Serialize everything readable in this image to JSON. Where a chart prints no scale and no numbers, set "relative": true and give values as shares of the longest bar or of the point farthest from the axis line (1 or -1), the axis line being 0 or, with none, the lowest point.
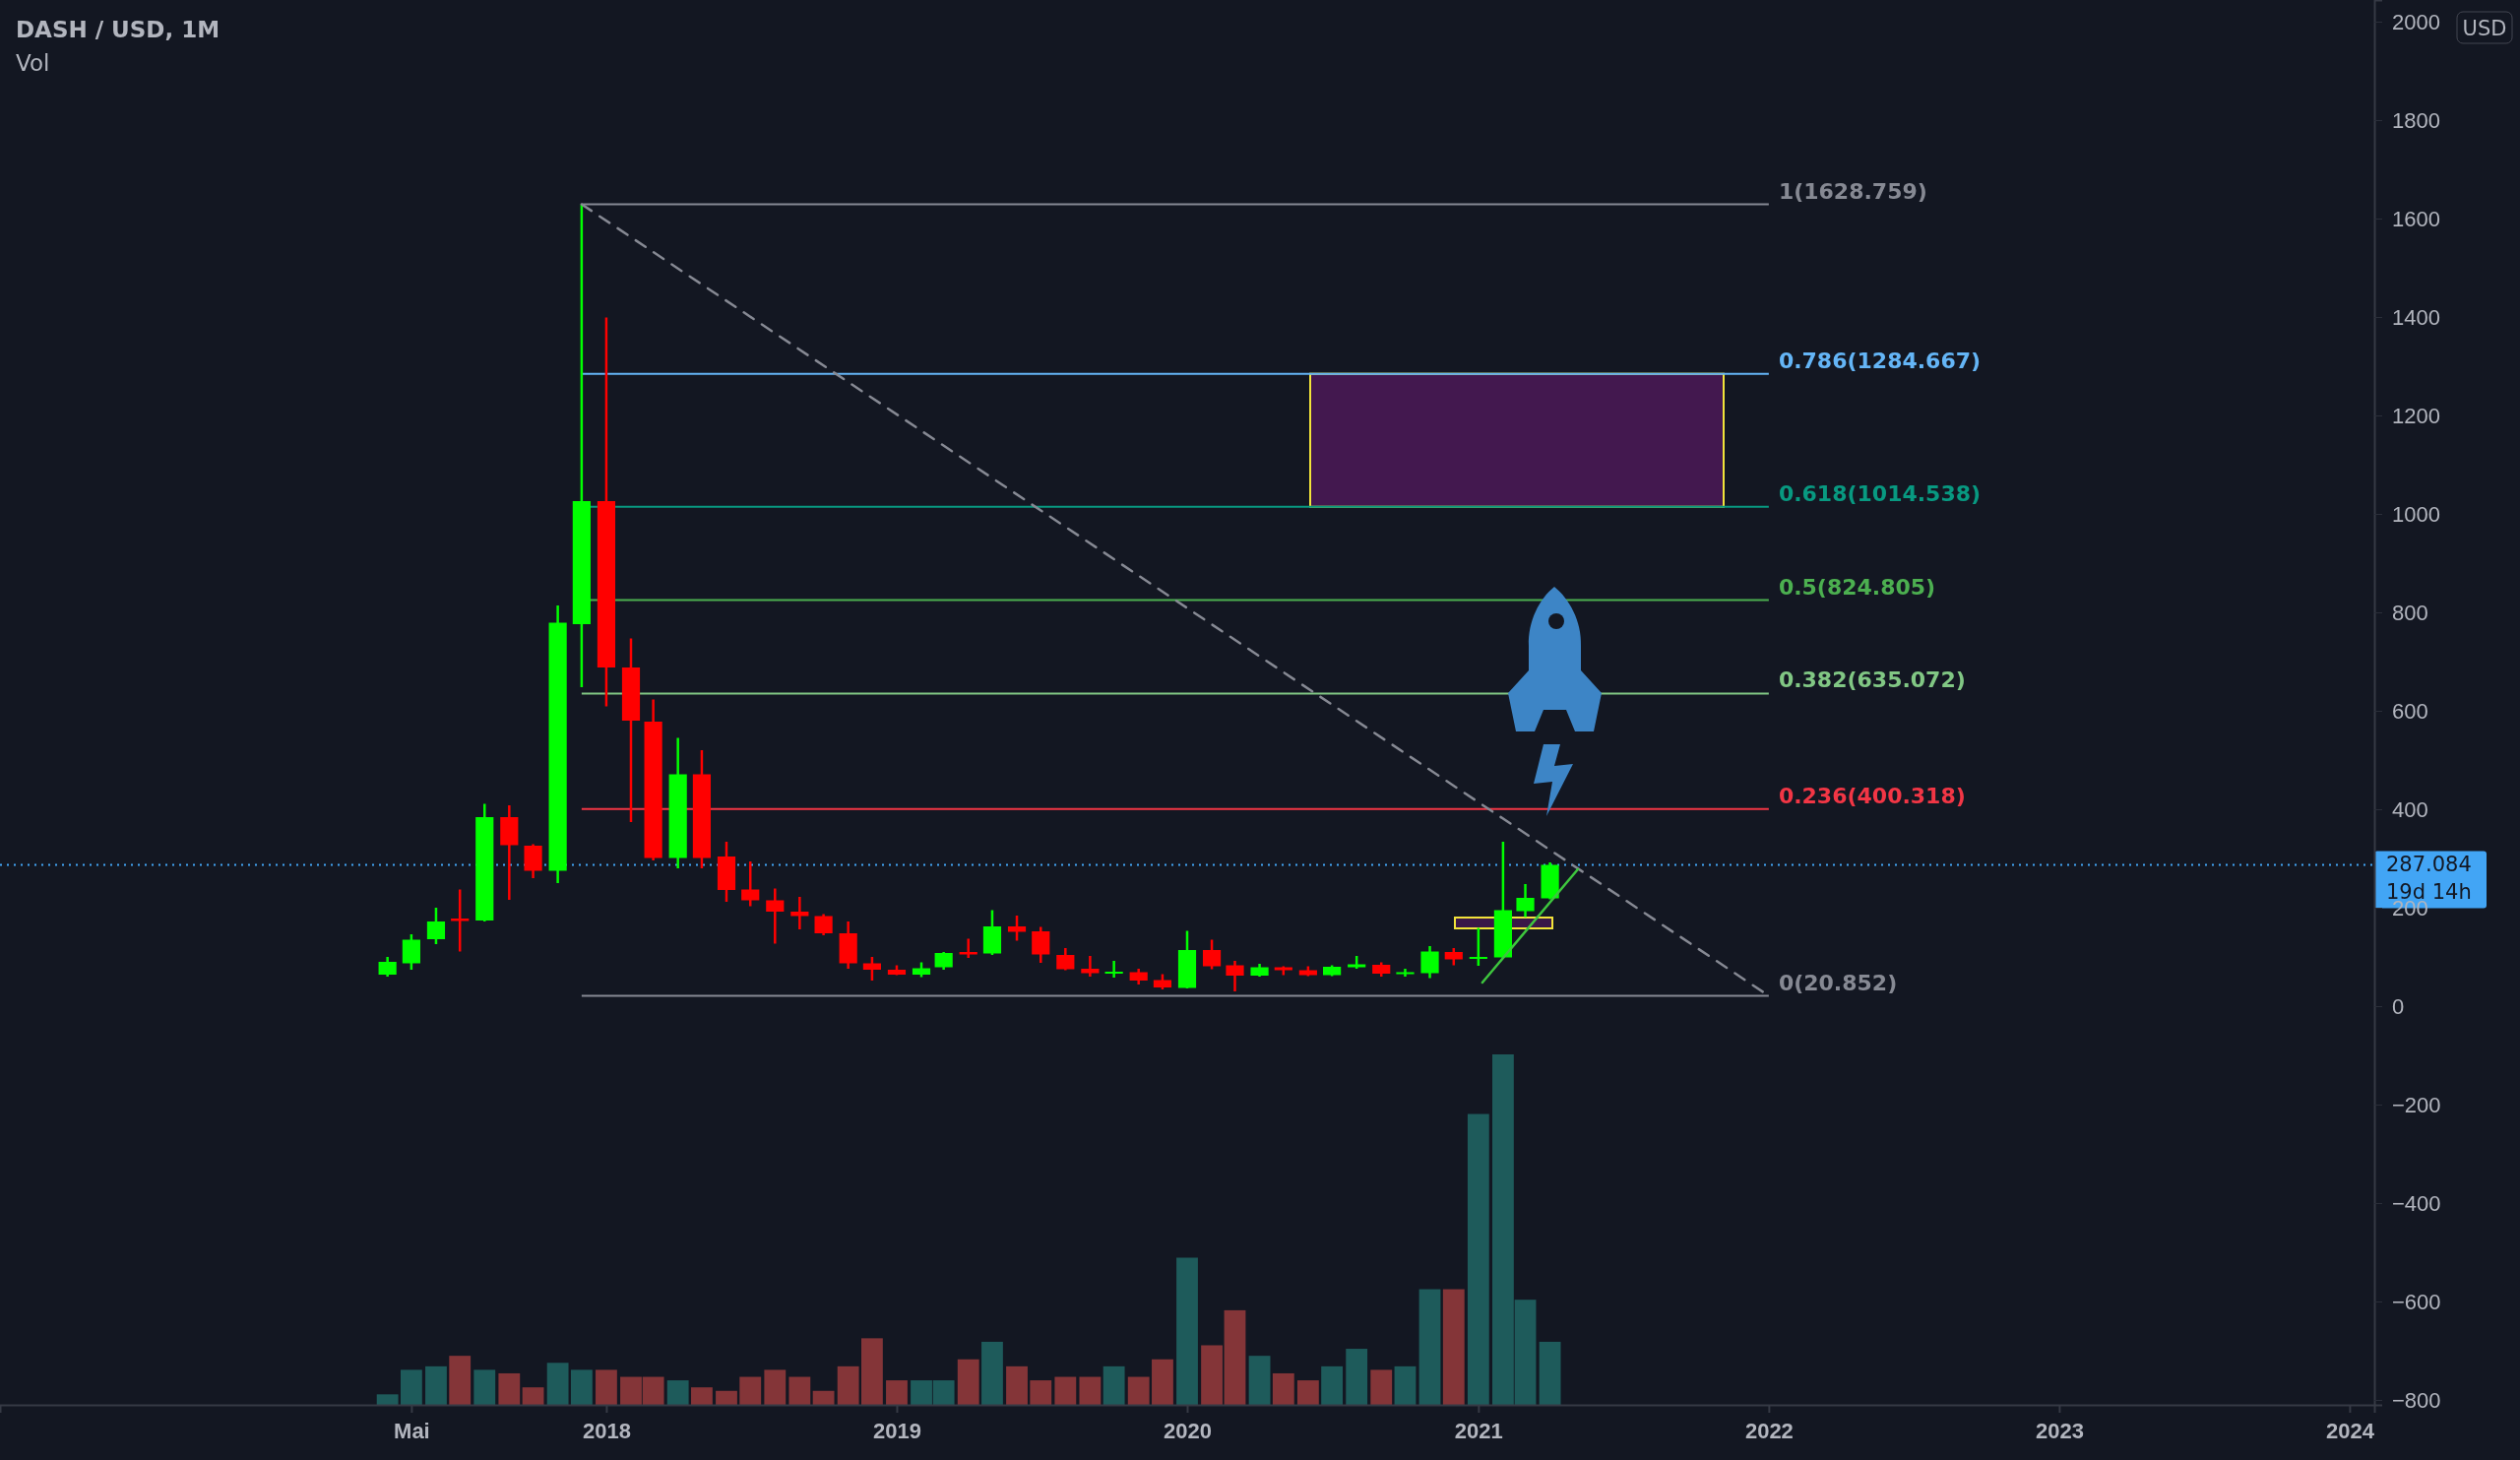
{
  "chart_data": [
    {
      "type": "candlestick",
      "title": "DASH / USD, 1M",
      "x": [
        "2017-04",
        "2017-05",
        "2017-06",
        "2017-07",
        "2017-08",
        "2017-09",
        "2017-10",
        "2017-11",
        "2017-12",
        "2018-01",
        "2018-02",
        "2018-03",
        "2018-04",
        "2018-05",
        "2018-06",
        "2018-07",
        "2018-08",
        "2018-09",
        "2018-10",
        "2018-11",
        "2018-12",
        "2019-01",
        "2019-02",
        "2019-03",
        "2019-04",
        "2019-05",
        "2019-06",
        "2019-07",
        "2019-08",
        "2019-09",
        "2019-10",
        "2019-11",
        "2019-12",
        "2020-01",
        "2020-02",
        "2020-03",
        "2020-04",
        "2020-05",
        "2020-06",
        "2020-07",
        "2020-08",
        "2020-09",
        "2020-10",
        "2020-11",
        "2020-12",
        "2021-01",
        "2021-02",
        "2021-03",
        "2021-04"
      ],
      "ohlc": [
        [
          64,
          100,
          60,
          90
        ],
        [
          87,
          146,
          74,
          135
        ],
        [
          136,
          200,
          126,
          172
        ],
        [
          178,
          237,
          111,
          173
        ],
        [
          174,
          411,
          172,
          384
        ],
        [
          384,
          408,
          216,
          327
        ],
        [
          326,
          329,
          260,
          275
        ],
        [
          275,
          814,
          250,
          779
        ],
        [
          776,
          1628.759,
          648,
          1026
        ],
        [
          1026,
          1399,
          609,
          688
        ],
        [
          688,
          747,
          374,
          580
        ],
        [
          578,
          623,
          296,
          301
        ],
        [
          301,
          545,
          280,
          471
        ],
        [
          471,
          520,
          280,
          301
        ],
        [
          304,
          334,
          212,
          236
        ],
        [
          237,
          294,
          203,
          215
        ],
        [
          215,
          239,
          127,
          192
        ],
        [
          192,
          222,
          156,
          183
        ],
        [
          183,
          187,
          144,
          148
        ],
        [
          148,
          172,
          76,
          87
        ],
        [
          87,
          100,
          52,
          74
        ],
        [
          74,
          83,
          63,
          64
        ],
        [
          64,
          89,
          59,
          77
        ],
        [
          79,
          110,
          74,
          108
        ],
        [
          110,
          137,
          98,
          105
        ],
        [
          107,
          195,
          104,
          162
        ],
        [
          162,
          184,
          133,
          151
        ],
        [
          152,
          161,
          88,
          105
        ],
        [
          104,
          118,
          73,
          75
        ],
        [
          76,
          102,
          60,
          67
        ],
        [
          67,
          92,
          58,
          70
        ],
        [
          69,
          76,
          44,
          52
        ],
        [
          53,
          65,
          34,
          38
        ],
        [
          37,
          153,
          36,
          114
        ],
        [
          114,
          135,
          75,
          81
        ],
        [
          83,
          92,
          30,
          62
        ],
        [
          62,
          86,
          60,
          79
        ],
        [
          79,
          81,
          63,
          73
        ],
        [
          73,
          81,
          61,
          63
        ],
        [
          63,
          83,
          61,
          80
        ],
        [
          79,
          102,
          76,
          85
        ],
        [
          84,
          89,
          60,
          66
        ],
        [
          65,
          76,
          60,
          69
        ],
        [
          67,
          122,
          57,
          111
        ],
        [
          110,
          118,
          83,
          95
        ],
        [
          97,
          159,
          82,
          100
        ],
        [
          99,
          334,
          98,
          195
        ],
        [
          193,
          248,
          181,
          220
        ],
        [
          219,
          292,
          217,
          287.084
        ]
      ],
      "colors": [
        "#00ff00",
        "#00ff00",
        "#00ff00",
        "#ff0000",
        "#00ff00",
        "#ff0000",
        "#ff0000",
        "#00ff00",
        "#00ff00",
        "#ff0000",
        "#ff0000",
        "#ff0000",
        "#00ff00",
        "#ff0000",
        "#ff0000",
        "#ff0000",
        "#ff0000",
        "#ff0000",
        "#ff0000",
        "#ff0000",
        "#ff0000",
        "#ff0000",
        "#00ff00",
        "#00ff00",
        "#ff0000",
        "#00ff00",
        "#ff0000",
        "#ff0000",
        "#ff0000",
        "#ff0000",
        "#00ff00",
        "#ff0000",
        "#ff0000",
        "#00ff00",
        "#ff0000",
        "#ff0000",
        "#00ff00",
        "#ff0000",
        "#ff0000",
        "#00ff00",
        "#00ff00",
        "#ff0000",
        "#00ff00",
        "#00ff00",
        "#ff0000",
        "#00ff00",
        "#00ff00",
        "#00ff00",
        "#00ff00"
      ],
      "series": [
        {
          "type": "line",
          "x": [
            "2017-12",
            "2022-01"
          ],
          "values": [
            1629,
            21
          ],
          "color": "#868993",
          "line_style": "dashed"
        },
        {
          "type": "line",
          "x": [
            "2021-01-06",
            "2021-05-06"
          ],
          "values": [
            48,
            278
          ],
          "color": "#3ec63e",
          "line_style": "solid"
        }
      ],
      "xlim": [
        "2015-12",
        "2024-02"
      ],
      "xticks": [
        {
          "value": "2017-05",
          "label": "Mai"
        },
        {
          "value": "2018",
          "label": "2018"
        },
        {
          "value": "2019",
          "label": "2019"
        },
        {
          "value": "2020",
          "label": "2020"
        },
        {
          "value": "2021",
          "label": "2021"
        },
        {
          "value": "2022",
          "label": "2022"
        },
        {
          "value": "2023",
          "label": "2023"
        },
        {
          "value": "2024",
          "label": "2024"
        }
      ],
      "ylim": [
        -810,
        2044
      ],
      "yticks": [
        -800,
        -600,
        -400,
        -200,
        0,
        200,
        400,
        600,
        800,
        1000,
        1200,
        1400,
        1600,
        1800,
        2000
      ],
      "ref_lines": [
        {
          "axis": "y",
          "value": 1628.759,
          "label": "1(1628.759)",
          "color": "#868993"
        },
        {
          "axis": "y",
          "value": 1284.667,
          "label": "0.786(1284.667)",
          "color": "#64b5f6"
        },
        {
          "axis": "y",
          "value": 1014.538,
          "label": "0.618(1014.538)",
          "color": "#089981"
        },
        {
          "axis": "y",
          "value": 824.805,
          "label": "0.5(824.805)",
          "color": "#4caf50"
        },
        {
          "axis": "y",
          "value": 635.072,
          "label": "0.382(635.072)",
          "color": "#81c784"
        },
        {
          "axis": "y",
          "value": 400.318,
          "label": "0.236(400.318)",
          "color": "#f23645"
        },
        {
          "axis": "y",
          "value": 20.852,
          "label": "0(20.852)",
          "color": "#868993"
        },
        {
          "axis": "y",
          "value": 287.084,
          "label": "287.084",
          "color": "#42a5f5",
          "line_style": "dotted"
        }
      ],
      "bands": [
        {
          "axis": "y",
          "from": 1014.538,
          "to": 1284.667,
          "color": "#43184f"
        },
        {
          "axis": "y",
          "from": 158,
          "to": 180,
          "color": "#3a1748"
        }
      ],
      "annotations": [
        "USD",
        "19d 14h"
      ]
    },
    {
      "type": "bar",
      "title": "Vol",
      "relative": true,
      "x": [
        "2017-04",
        "2017-05",
        "2017-06",
        "2017-07",
        "2017-08",
        "2017-09",
        "2017-10",
        "2017-11",
        "2017-12",
        "2018-01",
        "2018-02",
        "2018-03",
        "2018-04",
        "2018-05",
        "2018-06",
        "2018-07",
        "2018-08",
        "2018-09",
        "2018-10",
        "2018-11",
        "2018-12",
        "2019-01",
        "2019-02",
        "2019-03",
        "2019-04",
        "2019-05",
        "2019-06",
        "2019-07",
        "2019-08",
        "2019-09",
        "2019-10",
        "2019-11",
        "2019-12",
        "2020-01",
        "2020-02",
        "2020-03",
        "2020-04",
        "2020-05",
        "2020-06",
        "2020-07",
        "2020-08",
        "2020-09",
        "2020-10",
        "2020-11",
        "2020-12",
        "2021-01",
        "2021-02",
        "2021-03",
        "2021-04"
      ],
      "values": [
        0.03,
        0.1,
        0.11,
        0.14,
        0.1,
        0.09,
        0.05,
        0.12,
        0.1,
        0.1,
        0.08,
        0.08,
        0.07,
        0.05,
        0.04,
        0.08,
        0.1,
        0.08,
        0.04,
        0.11,
        0.19,
        0.07,
        0.07,
        0.07,
        0.13,
        0.18,
        0.11,
        0.07,
        0.08,
        0.08,
        0.11,
        0.08,
        0.13,
        0.42,
        0.17,
        0.27,
        0.14,
        0.09,
        0.07,
        0.11,
        0.16,
        0.1,
        0.11,
        0.33,
        0.33,
        0.83,
        1,
        0.3,
        0.18
      ],
      "colors": [
        "#1e5b5b",
        "#1e5b5b",
        "#1e5b5b",
        "#843538",
        "#1e5b5b",
        "#843538",
        "#843538",
        "#1e5b5b",
        "#1e5b5b",
        "#843538",
        "#843538",
        "#843538",
        "#1e5b5b",
        "#843538",
        "#843538",
        "#843538",
        "#843538",
        "#843538",
        "#843538",
        "#843538",
        "#843538",
        "#843538",
        "#1e5b5b",
        "#1e5b5b",
        "#843538",
        "#1e5b5b",
        "#843538",
        "#843538",
        "#843538",
        "#843538",
        "#1e5b5b",
        "#843538",
        "#843538",
        "#1e5b5b",
        "#843538",
        "#843538",
        "#1e5b5b",
        "#843538",
        "#843538",
        "#1e5b5b",
        "#1e5b5b",
        "#843538",
        "#1e5b5b",
        "#1e5b5b",
        "#843538",
        "#1e5b5b",
        "#1e5b5b",
        "#1e5b5b",
        "#1e5b5b"
      ],
      "xlim": [
        "2015-12",
        "2024-02"
      ]
    }
  ]
}
